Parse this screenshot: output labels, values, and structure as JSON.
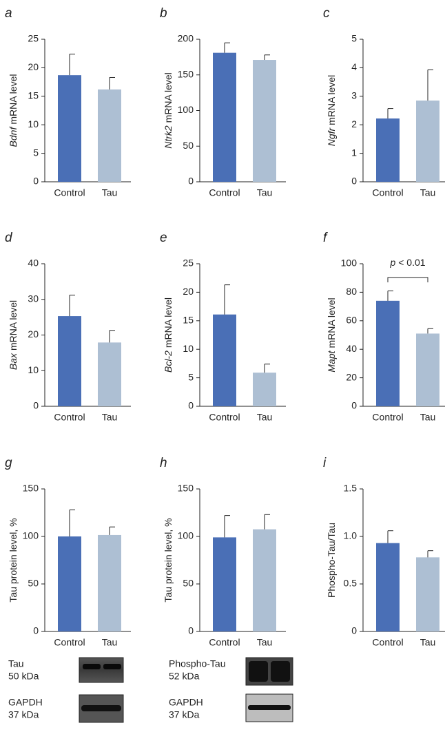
{
  "chart_data": [
    {
      "type": "bar",
      "panel_label": "a",
      "ylabel_gene": "Bdnf",
      "ylabel": "mRNA level",
      "categories": [
        "Control",
        "Tau"
      ],
      "values": [
        18.7,
        16.2
      ],
      "errors": [
        3.7,
        2.1
      ],
      "colors": [
        "#4a6fb6",
        "#adbfd3"
      ],
      "ylim": [
        0,
        25
      ],
      "yticks": [
        0,
        5,
        10,
        15,
        20,
        25
      ]
    },
    {
      "type": "bar",
      "panel_label": "b",
      "ylabel_gene": "Ntrk2",
      "ylabel": "mRNA level",
      "categories": [
        "Control",
        "Tau"
      ],
      "values": [
        181,
        171
      ],
      "errors": [
        14,
        7
      ],
      "colors": [
        "#4a6fb6",
        "#adbfd3"
      ],
      "ylim": [
        0,
        200
      ],
      "yticks": [
        0,
        50,
        100,
        150,
        200
      ]
    },
    {
      "type": "bar",
      "panel_label": "c",
      "ylabel_gene": "Ngfr",
      "ylabel": "mRNA level",
      "categories": [
        "Control",
        "Tau"
      ],
      "values": [
        2.22,
        2.85
      ],
      "errors": [
        0.35,
        1.08
      ],
      "colors": [
        "#4a6fb6",
        "#adbfd3"
      ],
      "ylim": [
        0,
        5
      ],
      "yticks": [
        0,
        1,
        2,
        3,
        4,
        5
      ]
    },
    {
      "type": "bar",
      "panel_label": "d",
      "ylabel_gene": "Bax",
      "ylabel": "mRNA level",
      "categories": [
        "Control",
        "Tau"
      ],
      "values": [
        25.3,
        17.9
      ],
      "errors": [
        5.9,
        3.4
      ],
      "colors": [
        "#4a6fb6",
        "#adbfd3"
      ],
      "ylim": [
        0,
        40
      ],
      "yticks": [
        0,
        10,
        20,
        30,
        40
      ]
    },
    {
      "type": "bar",
      "panel_label": "e",
      "ylabel_gene": "Bcl-2",
      "ylabel": "mRNA level",
      "categories": [
        "Control",
        "Tau"
      ],
      "values": [
        16.1,
        5.9
      ],
      "errors": [
        5.2,
        1.5
      ],
      "colors": [
        "#4a6fb6",
        "#adbfd3"
      ],
      "ylim": [
        0,
        25
      ],
      "yticks": [
        0,
        5,
        10,
        15,
        20,
        25
      ]
    },
    {
      "type": "bar",
      "panel_label": "f",
      "ylabel_gene": "Mapt",
      "ylabel": "mRNA level",
      "categories": [
        "Control",
        "Tau"
      ],
      "values": [
        74,
        51
      ],
      "errors": [
        7,
        3.5
      ],
      "colors": [
        "#4a6fb6",
        "#adbfd3"
      ],
      "ylim": [
        0,
        100
      ],
      "yticks": [
        0,
        20,
        40,
        60,
        80,
        100
      ],
      "annotation_symbol": "p",
      "annotation": "< 0.01"
    },
    {
      "type": "bar",
      "panel_label": "g",
      "ylabel": "Tau protein level, %",
      "categories": [
        "Control",
        "Tau"
      ],
      "values": [
        100,
        101.5
      ],
      "errors": [
        28,
        8.5
      ],
      "colors": [
        "#4a6fb6",
        "#adbfd3"
      ],
      "ylim": [
        0,
        150
      ],
      "yticks": [
        0,
        50,
        100,
        150
      ]
    },
    {
      "type": "bar",
      "panel_label": "h",
      "ylabel": "Tau protein level, %",
      "categories": [
        "Control",
        "Tau"
      ],
      "values": [
        99,
        107.5
      ],
      "errors": [
        23,
        15.5
      ],
      "colors": [
        "#4a6fb6",
        "#adbfd3"
      ],
      "ylim": [
        0,
        150
      ],
      "yticks": [
        0,
        50,
        100,
        150
      ]
    },
    {
      "type": "bar",
      "panel_label": "i",
      "ylabel": "Phospho-Tau/Tau",
      "categories": [
        "Control",
        "Tau"
      ],
      "values": [
        0.93,
        0.78
      ],
      "errors": [
        0.13,
        0.07
      ],
      "colors": [
        "#4a6fb6",
        "#adbfd3"
      ],
      "ylim": [
        0,
        1.5
      ],
      "yticks": [
        0,
        0.5,
        {
          "value": 1,
          "label": "1.0"
        },
        1.5
      ]
    }
  ],
  "blots": [
    {
      "protein": "Tau",
      "mass": "50 kDa"
    },
    {
      "protein": "GAPDH",
      "mass": "37 kDa"
    },
    {
      "protein": "Phospho-Tau",
      "mass": "52 kDa"
    },
    {
      "protein": "GAPDH",
      "mass": "37 kDa"
    }
  ]
}
